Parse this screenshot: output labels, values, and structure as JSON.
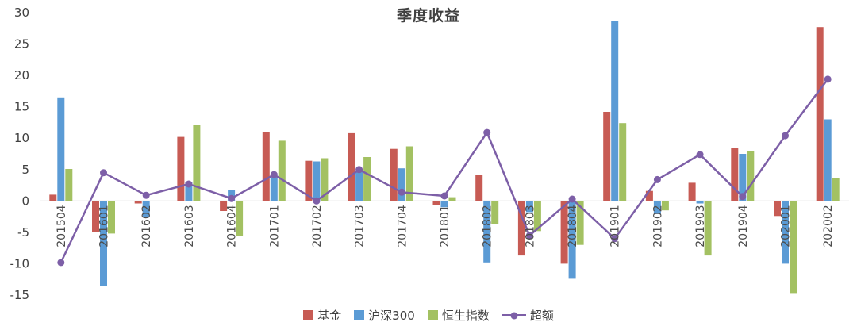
{
  "title": "季度收益",
  "colors": {
    "fund": "#C75B54",
    "csi300": "#5B9BD5",
    "hsi": "#A3C162",
    "excess": "#7D5FA7",
    "axis_text": "#404040",
    "x_label_text": "#4d4d4d",
    "zero_line": "#D9D9D9",
    "background": "#FFFFFF"
  },
  "chart_data": {
    "type": "bar+line",
    "title": "季度收益",
    "categories": [
      "201504",
      "201601",
      "201602",
      "201603",
      "201604",
      "201701",
      "201702",
      "201703",
      "201704",
      "201801",
      "201802",
      "201803",
      "201804",
      "201901",
      "201902",
      "201903",
      "201904",
      "202001",
      "202002"
    ],
    "series": [
      {
        "name": "基金",
        "type": "bar",
        "color": "#C75B54",
        "values": [
          1.0,
          -4.9,
          -0.4,
          10.2,
          -1.6,
          11.0,
          6.4,
          10.8,
          8.3,
          -0.7,
          4.1,
          -8.7,
          -10.0,
          14.2,
          1.6,
          2.9,
          8.4,
          -2.4,
          27.7
        ]
      },
      {
        "name": "沪深300",
        "type": "bar",
        "color": "#5B9BD5",
        "values": [
          16.5,
          -13.5,
          -2.5,
          3.0,
          1.7,
          4.0,
          6.3,
          4.6,
          5.2,
          -1.0,
          -9.8,
          -1.8,
          -12.4,
          28.7,
          -2.1,
          -0.4,
          7.5,
          -10.0,
          13.0
        ]
      },
      {
        "name": "恒生指数",
        "type": "bar",
        "color": "#A3C162",
        "values": [
          5.1,
          -5.2,
          0.0,
          12.1,
          -5.6,
          9.6,
          6.8,
          7.0,
          8.7,
          0.6,
          -3.7,
          -4.8,
          -7.0,
          12.4,
          -1.5,
          -8.7,
          8.0,
          -14.8,
          3.6
        ]
      },
      {
        "name": "超额",
        "type": "line",
        "color": "#7D5FA7",
        "values": [
          -9.8,
          4.5,
          0.9,
          2.7,
          0.4,
          4.2,
          0.0,
          5.0,
          1.4,
          0.8,
          10.9,
          -5.5,
          0.3,
          -6.0,
          3.4,
          7.4,
          0.7,
          10.4,
          19.4
        ]
      }
    ],
    "ylim": [
      -15,
      30
    ],
    "y_ticks": [
      30,
      25,
      20,
      15,
      10,
      5,
      0,
      -5,
      -10,
      -15
    ],
    "grid": false,
    "legend_position": "bottom"
  }
}
